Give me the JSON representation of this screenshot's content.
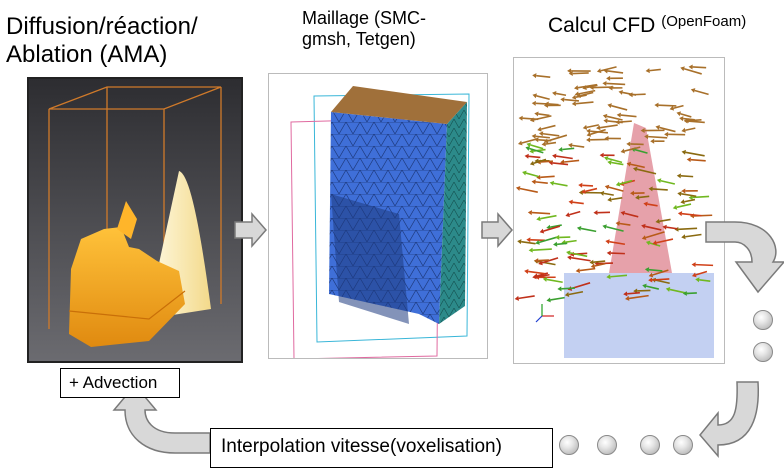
{
  "titles": {
    "ablation": [
      "Diffusion/réaction/",
      "Ablation (AMA)"
    ],
    "maillage": [
      "Maillage (SMC-",
      "gmsh, Tetgen)"
    ],
    "cfd_main": "Calcul CFD",
    "cfd_sup": "(OpenFoam)"
  },
  "boxes": {
    "advection": "+ Advection",
    "interpolation": "Interpolation vitesse(voxelisation)"
  },
  "colors": {
    "arrow_fill": "#d8d8d8",
    "arrow_stroke": "#7a7a7a",
    "mesh_blue": "#3f6fd8",
    "mesh_top": "#a0703a",
    "ablation_orange": "#f5a820",
    "cfd_cone": "#e08a95"
  }
}
